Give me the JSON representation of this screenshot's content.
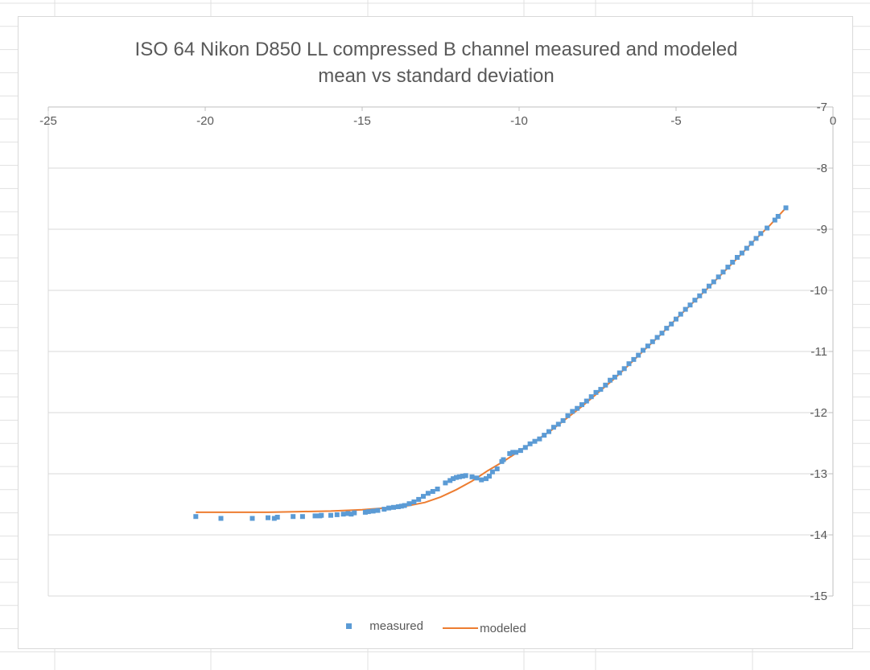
{
  "chart_data": {
    "type": "scatter",
    "title_lines": [
      "ISO 64 Nikon D850 LL compressed B channel measured and modeled",
      "mean vs standard deviation"
    ],
    "xlim": [
      -25,
      0
    ],
    "ylim": [
      -15,
      -7
    ],
    "x_ticks": [
      -25,
      -20,
      -15,
      -10,
      -5,
      0
    ],
    "y_ticks": [
      -7,
      -8,
      -9,
      -10,
      -11,
      -12,
      -13,
      -14,
      -15
    ],
    "x_tick_labels": [
      "-25",
      "-20",
      "-15",
      "-10",
      "-5",
      "0"
    ],
    "y_tick_labels": [
      "-7",
      "-8",
      "-9",
      "-10",
      "-11",
      "-12",
      "-13",
      "-14",
      "-15"
    ],
    "grid": "horizontal",
    "legend_position": "bottom",
    "colors": {
      "measured": "#5b9bd5",
      "modeled": "#ed7d31",
      "axis": "#bfbfbf",
      "grid": "#d9d9d9"
    },
    "series": [
      {
        "name": "measured",
        "kind": "markers",
        "points": [
          [
            -20.3,
            -13.7
          ],
          [
            -19.5,
            -13.73
          ],
          [
            -18.5,
            -13.73
          ],
          [
            -18.0,
            -13.72
          ],
          [
            -17.8,
            -13.73
          ],
          [
            -17.7,
            -13.71
          ],
          [
            -17.2,
            -13.7
          ],
          [
            -16.9,
            -13.7
          ],
          [
            -16.5,
            -13.69
          ],
          [
            -16.35,
            -13.69
          ],
          [
            -16.3,
            -13.68
          ],
          [
            -16.0,
            -13.68
          ],
          [
            -15.8,
            -13.67
          ],
          [
            -15.6,
            -13.66
          ],
          [
            -15.45,
            -13.65
          ],
          [
            -15.35,
            -13.66
          ],
          [
            -15.25,
            -13.64
          ],
          [
            -14.9,
            -13.63
          ],
          [
            -14.8,
            -13.62
          ],
          [
            -14.65,
            -13.61
          ],
          [
            -14.5,
            -13.6
          ],
          [
            -14.3,
            -13.58
          ],
          [
            -14.15,
            -13.56
          ],
          [
            -14.0,
            -13.55
          ],
          [
            -13.85,
            -13.54
          ],
          [
            -13.75,
            -13.53
          ],
          [
            -13.65,
            -13.52
          ],
          [
            -13.5,
            -13.49
          ],
          [
            -13.35,
            -13.46
          ],
          [
            -13.2,
            -13.42
          ],
          [
            -13.05,
            -13.37
          ],
          [
            -12.9,
            -13.32
          ],
          [
            -12.75,
            -13.29
          ],
          [
            -12.6,
            -13.25
          ],
          [
            -12.35,
            -13.15
          ],
          [
            -12.2,
            -13.11
          ],
          [
            -12.1,
            -13.08
          ],
          [
            -12.0,
            -13.06
          ],
          [
            -11.9,
            -13.05
          ],
          [
            -11.8,
            -13.04
          ],
          [
            -11.7,
            -13.03
          ],
          [
            -11.5,
            -13.05
          ],
          [
            -11.35,
            -13.07
          ],
          [
            -11.2,
            -13.1
          ],
          [
            -11.05,
            -13.08
          ],
          [
            -10.95,
            -13.04
          ],
          [
            -10.85,
            -12.97
          ],
          [
            -10.7,
            -12.92
          ],
          [
            -10.55,
            -12.8
          ],
          [
            -10.5,
            -12.77
          ],
          [
            -10.3,
            -12.67
          ],
          [
            -10.2,
            -12.65
          ],
          [
            -10.1,
            -12.65
          ],
          [
            -9.95,
            -12.62
          ],
          [
            -9.8,
            -12.57
          ],
          [
            -9.65,
            -12.51
          ],
          [
            -9.5,
            -12.47
          ],
          [
            -9.35,
            -12.43
          ],
          [
            -9.2,
            -12.37
          ],
          [
            -9.05,
            -12.31
          ],
          [
            -8.9,
            -12.24
          ],
          [
            -8.75,
            -12.19
          ],
          [
            -8.6,
            -12.13
          ],
          [
            -8.45,
            -12.05
          ],
          [
            -8.3,
            -11.98
          ],
          [
            -8.15,
            -11.93
          ],
          [
            -8.0,
            -11.87
          ],
          [
            -7.85,
            -11.81
          ],
          [
            -7.7,
            -11.74
          ],
          [
            -7.55,
            -11.67
          ],
          [
            -7.4,
            -11.62
          ],
          [
            -7.25,
            -11.55
          ],
          [
            -7.1,
            -11.47
          ],
          [
            -6.95,
            -11.42
          ],
          [
            -6.8,
            -11.35
          ],
          [
            -6.65,
            -11.28
          ],
          [
            -6.5,
            -11.2
          ],
          [
            -6.35,
            -11.13
          ],
          [
            -6.2,
            -11.06
          ],
          [
            -6.05,
            -10.98
          ],
          [
            -5.9,
            -10.91
          ],
          [
            -5.75,
            -10.84
          ],
          [
            -5.6,
            -10.77
          ],
          [
            -5.45,
            -10.7
          ],
          [
            -5.3,
            -10.62
          ],
          [
            -5.15,
            -10.55
          ],
          [
            -5.0,
            -10.47
          ],
          [
            -4.85,
            -10.39
          ],
          [
            -4.7,
            -10.31
          ],
          [
            -4.55,
            -10.24
          ],
          [
            -4.4,
            -10.16
          ],
          [
            -4.25,
            -10.09
          ],
          [
            -4.1,
            -10.01
          ],
          [
            -3.95,
            -9.93
          ],
          [
            -3.8,
            -9.86
          ],
          [
            -3.65,
            -9.78
          ],
          [
            -3.5,
            -9.7
          ],
          [
            -3.35,
            -9.62
          ],
          [
            -3.2,
            -9.54
          ],
          [
            -3.05,
            -9.46
          ],
          [
            -2.9,
            -9.39
          ],
          [
            -2.75,
            -9.31
          ],
          [
            -2.6,
            -9.23
          ],
          [
            -2.45,
            -9.15
          ],
          [
            -2.3,
            -9.07
          ],
          [
            -2.1,
            -8.98
          ],
          [
            -1.85,
            -8.85
          ],
          [
            -1.75,
            -8.79
          ],
          [
            -1.5,
            -8.65
          ]
        ]
      },
      {
        "name": "modeled",
        "kind": "line",
        "points": [
          [
            -20.3,
            -13.63
          ],
          [
            -19.0,
            -13.63
          ],
          [
            -18.0,
            -13.63
          ],
          [
            -17.0,
            -13.62
          ],
          [
            -16.0,
            -13.61
          ],
          [
            -15.0,
            -13.59
          ],
          [
            -14.5,
            -13.57
          ],
          [
            -14.0,
            -13.55
          ],
          [
            -13.5,
            -13.52
          ],
          [
            -13.0,
            -13.47
          ],
          [
            -12.5,
            -13.38
          ],
          [
            -12.0,
            -13.26
          ],
          [
            -11.5,
            -13.12
          ],
          [
            -11.0,
            -12.95
          ],
          [
            -10.5,
            -12.8
          ],
          [
            -10.0,
            -12.63
          ],
          [
            -9.5,
            -12.47
          ],
          [
            -9.0,
            -12.3
          ],
          [
            -8.5,
            -12.1
          ],
          [
            -8.0,
            -11.9
          ],
          [
            -7.5,
            -11.68
          ],
          [
            -7.0,
            -11.46
          ],
          [
            -6.5,
            -11.22
          ],
          [
            -6.0,
            -10.97
          ],
          [
            -5.5,
            -10.73
          ],
          [
            -5.0,
            -10.47
          ],
          [
            -4.5,
            -10.22
          ],
          [
            -4.0,
            -9.97
          ],
          [
            -3.5,
            -9.71
          ],
          [
            -3.0,
            -9.45
          ],
          [
            -2.5,
            -9.18
          ],
          [
            -2.0,
            -8.93
          ],
          [
            -1.5,
            -8.65
          ]
        ]
      }
    ]
  },
  "legend": {
    "measured_label": "measured",
    "modeled_label": "modeled"
  }
}
